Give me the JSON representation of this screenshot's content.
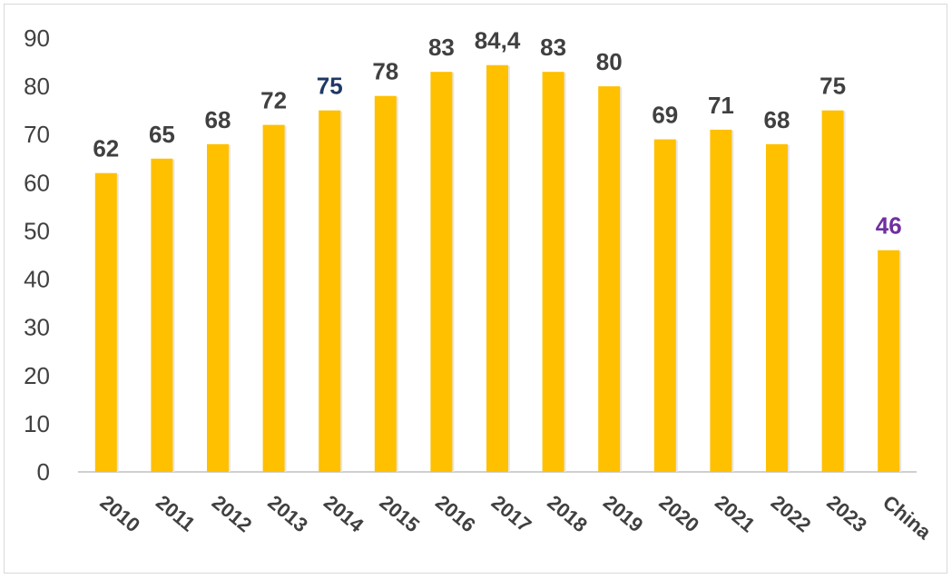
{
  "chart_data": {
    "type": "bar",
    "categories": [
      "2010",
      "2011",
      "2012",
      "2013",
      "2014",
      "2015",
      "2016",
      "2017",
      "2018",
      "2019",
      "2020",
      "2021",
      "2022",
      "2023",
      "China"
    ],
    "values": [
      62,
      65,
      68,
      72,
      75,
      78,
      83,
      84.4,
      83,
      80,
      69,
      71,
      68,
      75,
      46
    ],
    "data_labels": [
      "62",
      "65",
      "68",
      "72",
      "75",
      "78",
      "83",
      "84,4",
      "83",
      "80",
      "69",
      "71",
      "68",
      "75",
      "46"
    ],
    "label_colors": [
      "#404040",
      "#404040",
      "#404040",
      "#404040",
      "#1f3864",
      "#404040",
      "#404040",
      "#404040",
      "#404040",
      "#404040",
      "#404040",
      "#404040",
      "#404040",
      "#404040",
      "#7030a0"
    ],
    "bar_color": "#ffc000",
    "ylim": [
      0,
      90
    ],
    "yticks": [
      "0",
      "10",
      "20",
      "30",
      "40",
      "50",
      "60",
      "70",
      "80",
      "90"
    ],
    "grid": false,
    "legend": "none"
  }
}
